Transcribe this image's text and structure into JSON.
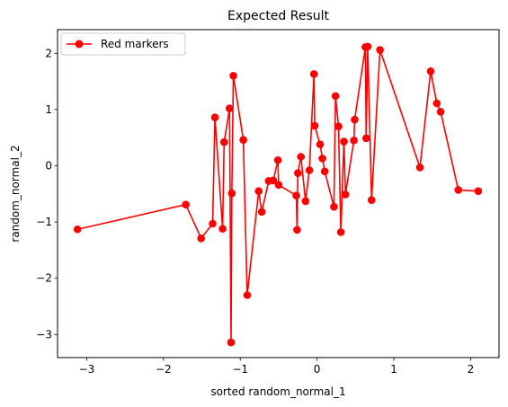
{
  "chart_data": {
    "type": "line",
    "title": "Expected Result",
    "xlabel": "sorted random_normal_1",
    "ylabel": "random_normal_2",
    "xlim": [
      -3.38,
      2.37
    ],
    "ylim": [
      -3.41,
      2.42
    ],
    "xticks": [
      -3,
      -2,
      -1,
      0,
      1,
      2
    ],
    "xtick_labels": [
      "−3",
      "−2",
      "−1",
      "0",
      "1",
      "2"
    ],
    "yticks": [
      -3,
      -2,
      -1,
      0,
      1,
      2
    ],
    "ytick_labels": [
      "−3",
      "−2",
      "−1",
      "0",
      "1",
      "2"
    ],
    "grid": false,
    "legend_position": "upper-left",
    "series": [
      {
        "name": "Red markers",
        "color": "#ff0000",
        "marker": "circle",
        "x": [
          -3.12,
          -1.71,
          -1.51,
          -1.36,
          -1.33,
          -1.23,
          -1.21,
          -1.14,
          -1.12,
          -1.11,
          -1.09,
          -0.96,
          -0.91,
          -0.76,
          -0.72,
          -0.63,
          -0.57,
          -0.51,
          -0.5,
          -0.27,
          -0.26,
          -0.25,
          -0.21,
          -0.15,
          -0.1,
          -0.04,
          -0.03,
          0.04,
          0.07,
          0.1,
          0.22,
          0.24,
          0.28,
          0.31,
          0.35,
          0.37,
          0.48,
          0.49,
          0.63,
          0.64,
          0.66,
          0.71,
          0.82,
          1.34,
          1.48,
          1.56,
          1.61,
          1.84,
          2.1
        ],
        "y": [
          -1.13,
          -0.69,
          -1.29,
          -1.03,
          0.86,
          -1.12,
          0.42,
          1.02,
          -3.14,
          -0.49,
          1.6,
          0.46,
          -2.3,
          -0.45,
          -0.82,
          -0.27,
          -0.26,
          0.1,
          -0.34,
          -0.53,
          -1.14,
          -0.13,
          0.16,
          -0.63,
          -0.08,
          1.63,
          0.71,
          0.38,
          0.13,
          -0.1,
          -0.73,
          1.24,
          0.7,
          -1.18,
          0.43,
          -0.51,
          0.45,
          0.82,
          2.11,
          0.49,
          2.12,
          -0.61,
          2.06,
          -0.03,
          1.68,
          1.11,
          0.96,
          -0.43,
          -0.45
        ]
      }
    ]
  }
}
